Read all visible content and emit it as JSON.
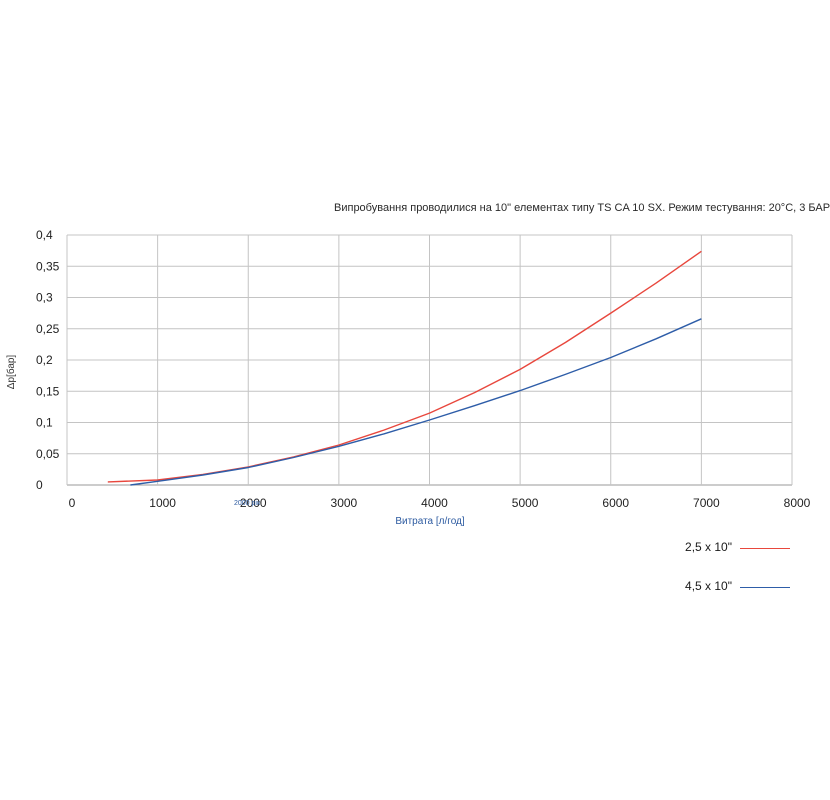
{
  "note": "Випробування проводилися на 10\" елементах типу TS CA 10 SX. Режим тестування: 20°C, 3 БАР",
  "chart_data": {
    "type": "line",
    "xlabel": "Витрата [л/год]",
    "ylabel": "Δp[бар]",
    "xlim": [
      0,
      8000
    ],
    "ylim": [
      0,
      0.4
    ],
    "x_ticks": [
      "0",
      "1000",
      "2000",
      "3000",
      "4000",
      "5000",
      "6000",
      "7000",
      "8000"
    ],
    "y_ticks": [
      "0",
      "0,05",
      "0,1",
      "0,15",
      "0,2",
      "0,25",
      "0,3",
      "0,35",
      "0,4"
    ],
    "grid": true,
    "legend_position": "bottom-right",
    "annotation": "2000 рік",
    "series": [
      {
        "name": "2,5 x 10\"",
        "color": "#e8473d",
        "x": [
          450,
          1000,
          1500,
          2000,
          2500,
          3000,
          3500,
          4000,
          4500,
          5000,
          5500,
          6000,
          6500,
          7000
        ],
        "y": [
          0.005,
          0.008,
          0.017,
          0.029,
          0.045,
          0.064,
          0.088,
          0.115,
          0.148,
          0.185,
          0.228,
          0.275,
          0.323,
          0.374
        ]
      },
      {
        "name": "4,5 x 10\"",
        "color": "#2e5da8",
        "x": [
          700,
          1000,
          1500,
          2000,
          2500,
          3000,
          3500,
          4000,
          4500,
          5000,
          5500,
          6000,
          6500,
          7000
        ],
        "y": [
          0.0,
          0.006,
          0.016,
          0.028,
          0.044,
          0.062,
          0.082,
          0.104,
          0.127,
          0.151,
          0.177,
          0.204,
          0.234,
          0.266
        ]
      }
    ]
  }
}
